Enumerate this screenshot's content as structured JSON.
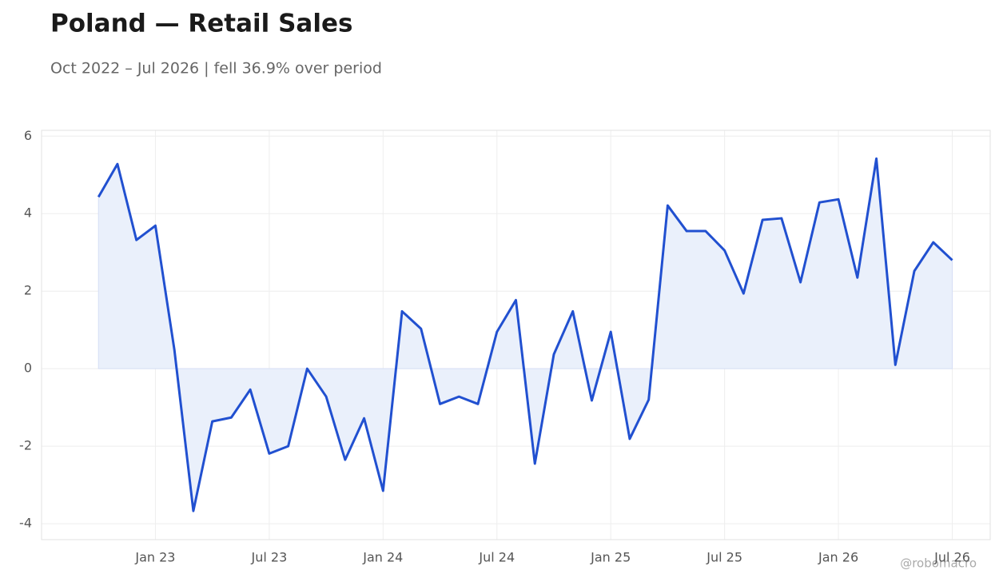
{
  "chart_data": {
    "type": "line",
    "title": "Poland — Retail Sales",
    "subtitle": "Oct 2022 – Jul 2026 | fell 36.9% over period",
    "watermark": "@robomacro",
    "x": [
      "2022-10",
      "2022-11",
      "2022-12",
      "2023-01",
      "2023-02",
      "2023-03",
      "2023-04",
      "2023-05",
      "2023-06",
      "2023-07",
      "2023-08",
      "2023-09",
      "2023-10",
      "2023-11",
      "2023-12",
      "2024-01",
      "2024-02",
      "2024-03",
      "2024-04",
      "2024-05",
      "2024-06",
      "2024-07",
      "2024-08",
      "2024-09",
      "2024-10",
      "2024-11",
      "2024-12",
      "2025-01",
      "2025-02",
      "2025-03",
      "2025-04",
      "2025-05",
      "2025-06",
      "2025-07",
      "2025-08",
      "2025-09",
      "2025-10",
      "2025-11",
      "2025-12",
      "2026-01",
      "2026-02",
      "2026-03",
      "2026-04",
      "2026-05",
      "2026-06",
      "2026-07"
    ],
    "series": [
      {
        "name": "Retail Sales",
        "color": "#2150d0",
        "fill": "#eaf0fb",
        "values": [
          4.43,
          5.28,
          3.32,
          3.69,
          0.49,
          -3.67,
          -1.36,
          -1.26,
          -0.54,
          -2.19,
          -2.0,
          0.0,
          -0.72,
          -2.35,
          -1.28,
          -3.15,
          1.48,
          1.03,
          -0.91,
          -0.72,
          -0.91,
          0.95,
          1.77,
          -2.45,
          0.37,
          1.48,
          -0.82,
          0.95,
          -1.81,
          -0.8,
          4.21,
          3.55,
          3.55,
          3.05,
          1.94,
          3.84,
          3.88,
          2.23,
          4.29,
          4.37,
          2.35,
          5.42,
          0.1,
          2.52,
          3.26,
          2.8
        ]
      }
    ],
    "xlim": [
      "2022-07",
      "2026-09"
    ],
    "xticks": [
      {
        "value": "2023-01",
        "label": "Jan 23"
      },
      {
        "value": "2023-07",
        "label": "Jul 23"
      },
      {
        "value": "2024-01",
        "label": "Jan 24"
      },
      {
        "value": "2024-07",
        "label": "Jul 24"
      },
      {
        "value": "2025-01",
        "label": "Jan 25"
      },
      {
        "value": "2025-07",
        "label": "Jul 25"
      },
      {
        "value": "2026-01",
        "label": "Jan 26"
      },
      {
        "value": "2026-07",
        "label": "Jul 26"
      }
    ],
    "ylim": [
      -4.41,
      6.15
    ],
    "yticks": [
      -4,
      -2,
      0,
      2,
      4,
      6
    ],
    "grid": true
  }
}
